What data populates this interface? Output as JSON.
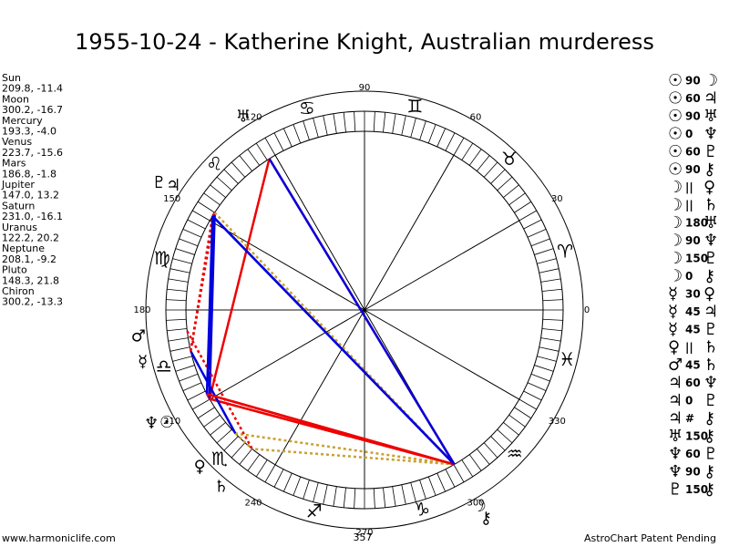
{
  "title": "1955-10-24 - Katherine Knight, Australian murderess",
  "planets": [
    {
      "name": "Sun",
      "glyph": "☉",
      "coords": "209.8, -11.4"
    },
    {
      "name": "Moon",
      "glyph": "☽",
      "coords": "300.2, -16.7"
    },
    {
      "name": "Mercury",
      "glyph": "☿",
      "coords": "193.3, -4.0"
    },
    {
      "name": "Venus",
      "glyph": "♀",
      "coords": "223.7, -15.6"
    },
    {
      "name": "Mars",
      "glyph": "♂",
      "coords": "186.8, -1.8"
    },
    {
      "name": "Jupiter",
      "glyph": "♃",
      "coords": "147.0, 13.2"
    },
    {
      "name": "Saturn",
      "glyph": "♄",
      "coords": "231.0, -16.1"
    },
    {
      "name": "Uranus",
      "glyph": "♅",
      "coords": "122.2, 20.2"
    },
    {
      "name": "Neptune",
      "glyph": "♆",
      "coords": "208.1, -9.2"
    },
    {
      "name": "Pluto",
      "glyph": "♇",
      "coords": "148.3, 21.8"
    },
    {
      "name": "Chiron",
      "glyph": "⚷",
      "coords": "300.2, -13.3"
    }
  ],
  "aspects": [
    {
      "from": "☉",
      "type": "90",
      "to": "☽"
    },
    {
      "from": "☉",
      "type": "60",
      "to": "♃"
    },
    {
      "from": "☉",
      "type": "90",
      "to": "♅"
    },
    {
      "from": "☉",
      "type": "0",
      "to": "♆"
    },
    {
      "from": "☉",
      "type": "60",
      "to": "♇"
    },
    {
      "from": "☉",
      "type": "90",
      "to": "⚷"
    },
    {
      "from": "☽",
      "type": "||",
      "to": "♀"
    },
    {
      "from": "☽",
      "type": "||",
      "to": "♄"
    },
    {
      "from": "☽",
      "type": "180",
      "to": "♅"
    },
    {
      "from": "☽",
      "type": "90",
      "to": "♆"
    },
    {
      "from": "☽",
      "type": "150",
      "to": "♇"
    },
    {
      "from": "☽",
      "type": "0",
      "to": "⚷"
    },
    {
      "from": "☿",
      "type": "30",
      "to": "♀"
    },
    {
      "from": "☿",
      "type": "45",
      "to": "♃"
    },
    {
      "from": "☿",
      "type": "45",
      "to": "♇"
    },
    {
      "from": "♀",
      "type": "||",
      "to": "♄"
    },
    {
      "from": "♂",
      "type": "45",
      "to": "♄"
    },
    {
      "from": "♃",
      "type": "60",
      "to": "♆"
    },
    {
      "from": "♃",
      "type": "0",
      "to": "♇"
    },
    {
      "from": "♃",
      "type": "#",
      "to": "⚷"
    },
    {
      "from": "♅",
      "type": "150",
      "to": "⚷"
    },
    {
      "from": "♆",
      "type": "60",
      "to": "♇"
    },
    {
      "from": "♆",
      "type": "90",
      "to": "⚷"
    },
    {
      "from": "♇",
      "type": "150",
      "to": "⚷"
    }
  ],
  "wheel": {
    "degree_labels": [
      0,
      30,
      60,
      90,
      120,
      150,
      180,
      210,
      240,
      270,
      300,
      330
    ],
    "signs": [
      "♈",
      "♉",
      "♊",
      "♋",
      "♌",
      "♍",
      "♎",
      "♏",
      "♐",
      "♑",
      "♒",
      "♓"
    ],
    "marker": "357"
  },
  "footer": {
    "left": "www.harmoniclife.com",
    "right": "AstroChart Patent Pending"
  }
}
